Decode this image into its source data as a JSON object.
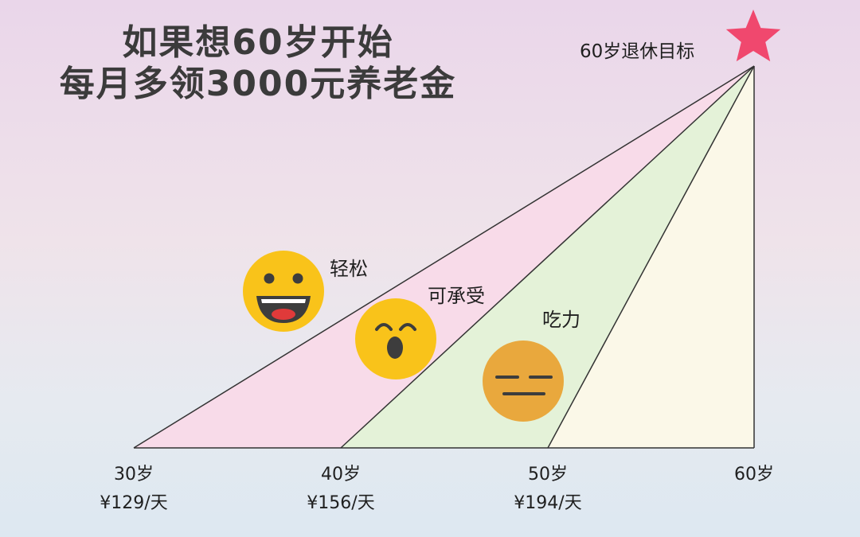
{
  "title": {
    "line1": "如果想60岁开始",
    "line2": "每月多领3000元养老金"
  },
  "target": {
    "label": "60岁退休目标",
    "icon": "star-icon",
    "color": "#f0486e"
  },
  "zones": [
    {
      "label": "轻松",
      "color": "#f8dbe9",
      "emoji": "grinning-face-icon"
    },
    {
      "label": "可承受",
      "color": "#e4f2d8",
      "emoji": "surprised-face-icon"
    },
    {
      "label": "吃力",
      "color": "#fbf8e8",
      "emoji": "expressionless-face-icon"
    }
  ],
  "axis": [
    {
      "age": "30岁",
      "cost": "¥129/天"
    },
    {
      "age": "40岁",
      "cost": "¥156/天"
    },
    {
      "age": "50岁",
      "cost": "¥194/天"
    },
    {
      "age": "60岁",
      "cost": ""
    }
  ]
}
